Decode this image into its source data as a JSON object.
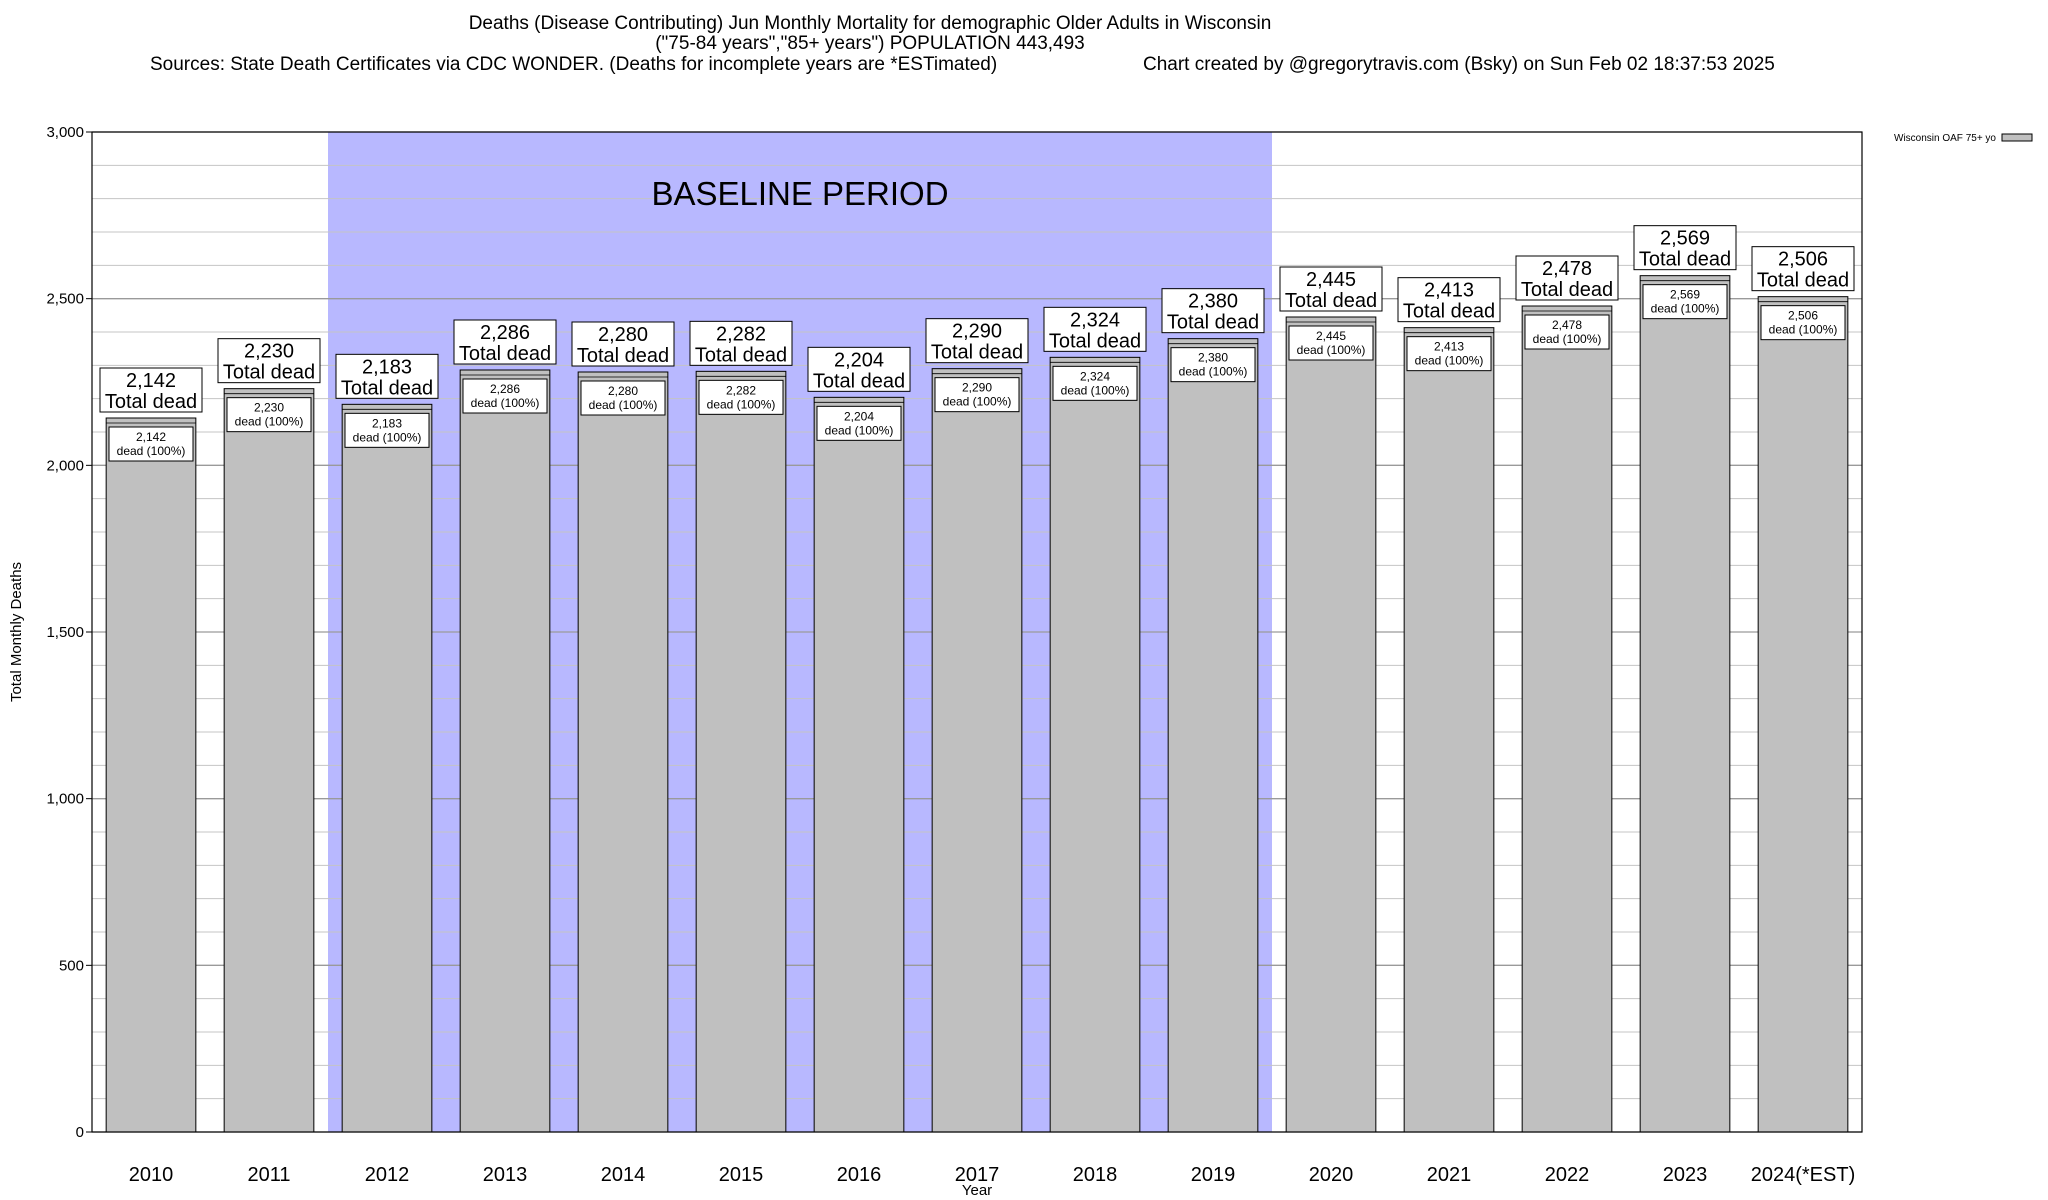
{
  "header": {
    "title": "Deaths (Disease Contributing) Jun Monthly Mortality for demographic Older Adults in Wisconsin",
    "subtitle": "(\"75-84 years\",\"85+ years\") POPULATION 443,493",
    "sources": "Sources: State Death Certificates via CDC WONDER. (Deaths for incomplete years are *ESTimated)",
    "created": "Chart created by @gregorytravis.com (Bsky) on Sun Feb 02 18:37:53 2025"
  },
  "chart_data": {
    "type": "bar",
    "xlabel": "Year",
    "ylabel": "Total Monthly Deaths",
    "ylim": [
      0,
      3000
    ],
    "yticks": [
      0,
      500,
      1000,
      1500,
      2000,
      2500,
      3000
    ],
    "ytick_labels": [
      "0",
      "500",
      "1,000",
      "1,500",
      "2,000",
      "2,500",
      "3,000"
    ],
    "grid": true,
    "legend": {
      "position": "top-right",
      "label": "Wisconsin OAF 75+ yo"
    },
    "baseline": {
      "label": "BASELINE PERIOD",
      "from": "2012",
      "to": "2019",
      "color": "#b8b8ff"
    },
    "bar_color": "#c0c0c0",
    "categories": [
      "2010",
      "2011",
      "2012",
      "2013",
      "2014",
      "2015",
      "2016",
      "2017",
      "2018",
      "2019",
      "2020",
      "2021",
      "2022",
      "2023",
      "2024(*EST)"
    ],
    "series": [
      {
        "name": "Wisconsin OAF 75+ yo",
        "values": [
          2142,
          2230,
          2183,
          2286,
          2280,
          2282,
          2204,
          2290,
          2324,
          2380,
          2445,
          2413,
          2478,
          2569,
          2506
        ],
        "value_labels": [
          "2,142",
          "2,230",
          "2,183",
          "2,286",
          "2,280",
          "2,282",
          "2,204",
          "2,290",
          "2,324",
          "2,380",
          "2,445",
          "2,413",
          "2,478",
          "2,569",
          "2,506"
        ]
      }
    ],
    "top_label_suffix": "Total dead",
    "inner_label_suffix": "dead (100%)"
  }
}
